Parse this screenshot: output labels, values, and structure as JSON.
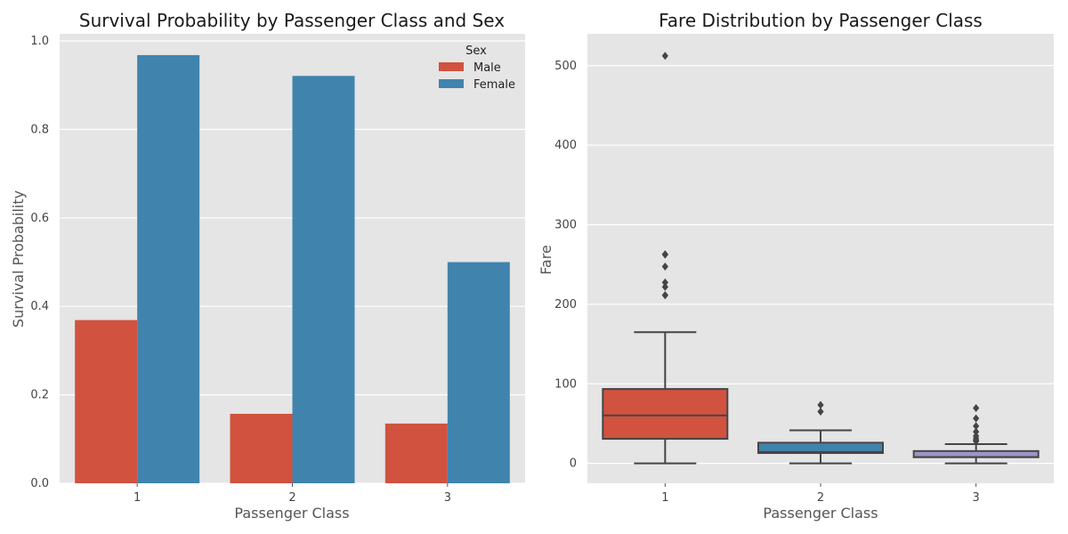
{
  "colors": {
    "male": "#d1523f",
    "female": "#4084ad",
    "class1": "#d1523f",
    "class2": "#4084ad",
    "class3": "#9d95c8",
    "panel": "#e5e5e5",
    "grid": "#ffffff",
    "box_line": "#454545"
  },
  "chart_data": [
    {
      "type": "bar",
      "title": "Survival Probability by Passenger Class and Sex",
      "xlabel": "Passenger Class",
      "ylabel": "Survival Probability",
      "categories": [
        "1",
        "2",
        "3"
      ],
      "ylim": [
        0,
        1.0
      ],
      "yticks": [
        "0.0",
        "0.2",
        "0.4",
        "0.6",
        "0.8",
        "1.0"
      ],
      "grid": true,
      "legend": {
        "title": "Sex",
        "position": "top-right"
      },
      "series": [
        {
          "name": "Male",
          "values": [
            0.369,
            0.157,
            0.135
          ]
        },
        {
          "name": "Female",
          "values": [
            0.968,
            0.921,
            0.5
          ]
        }
      ]
    },
    {
      "type": "box",
      "title": "Fare Distribution by Passenger Class",
      "xlabel": "Passenger Class",
      "ylabel": "Fare",
      "categories": [
        "1",
        "2",
        "3"
      ],
      "ylim": [
        -25,
        540
      ],
      "yticks": [
        "0",
        "100",
        "200",
        "300",
        "400",
        "500"
      ],
      "grid": true,
      "boxes": [
        {
          "category": "1",
          "min": 0,
          "q1": 30.9,
          "median": 60.3,
          "q3": 93.5,
          "max": 164.9,
          "outliers": [
            211.3,
            211.5,
            221.8,
            227.5,
            247.5,
            262.4,
            263.0,
            512.3
          ]
        },
        {
          "category": "2",
          "min": 0,
          "q1": 13.0,
          "median": 14.3,
          "q3": 26.0,
          "max": 41.6,
          "outliers": [
            65.0,
            73.5
          ]
        },
        {
          "category": "3",
          "min": 0,
          "q1": 7.75,
          "median": 8.05,
          "q3": 15.5,
          "max": 24.2,
          "outliers": [
            27.9,
            29.1,
            31.3,
            34.4,
            39.7,
            46.9,
            56.5,
            69.6
          ]
        }
      ]
    }
  ]
}
